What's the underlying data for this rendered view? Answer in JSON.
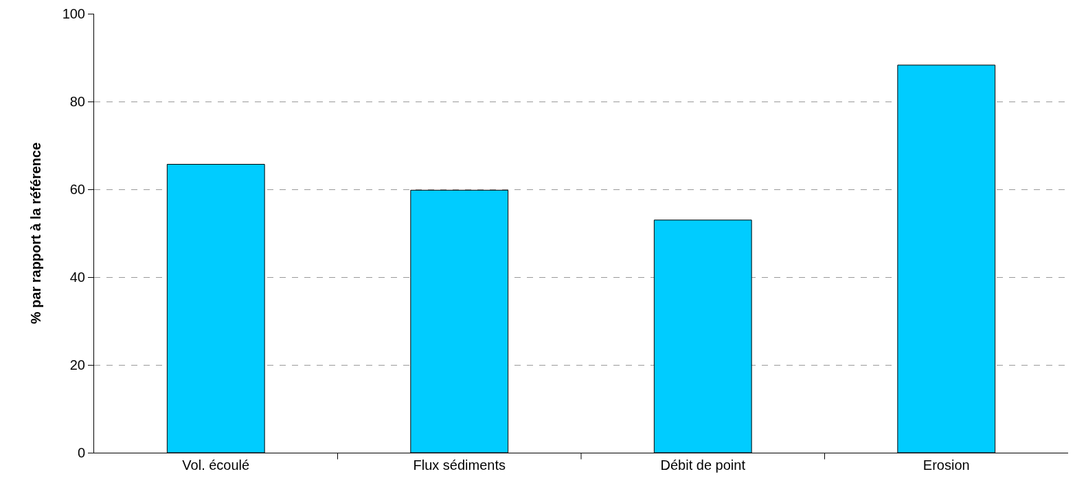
{
  "chart_data": {
    "type": "bar",
    "ylabel": "% par rapport à la référence",
    "categories": [
      "Vol. écoulé",
      "Flux sédiments",
      "Débit de point",
      "Erosion"
    ],
    "values": [
      65.7,
      59.8,
      53.0,
      88.3
    ],
    "color": "#00ccff",
    "ylim": [
      0,
      100
    ],
    "yticks": [
      0,
      20,
      40,
      60,
      80,
      100
    ],
    "grid": "y"
  }
}
